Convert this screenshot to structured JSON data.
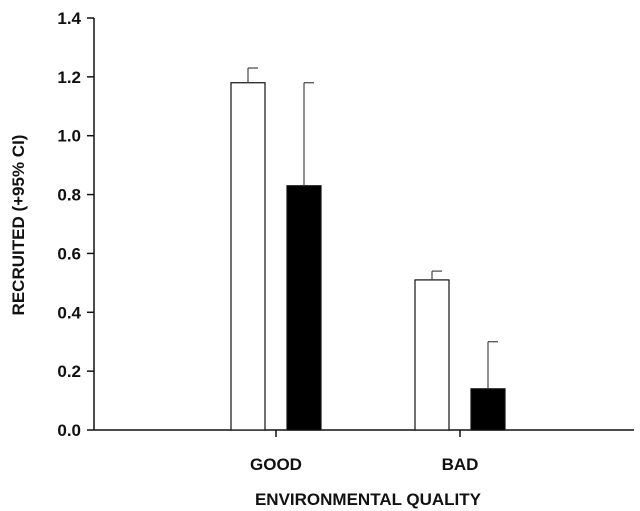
{
  "chart_data": {
    "type": "bar",
    "title": "",
    "xlabel": "ENVIRONMENTAL QUALITY",
    "ylabel": "RECRUITED (+95% CI)",
    "categories": [
      "GOOD",
      "BAD"
    ],
    "ylim": [
      0,
      1.4
    ],
    "yticks": [
      "0.0",
      "0.2",
      "0.4",
      "0.6",
      "0.8",
      "1.0",
      "1.2",
      "1.4"
    ],
    "grid": false,
    "legend": "none",
    "series": [
      {
        "color": "#ffffff",
        "values": [
          1.18,
          0.51
        ],
        "ci_upper": [
          1.23,
          0.54
        ]
      },
      {
        "color": "#000000",
        "values": [
          0.83,
          0.14
        ],
        "ci_upper": [
          1.18,
          0.3
        ]
      }
    ]
  }
}
